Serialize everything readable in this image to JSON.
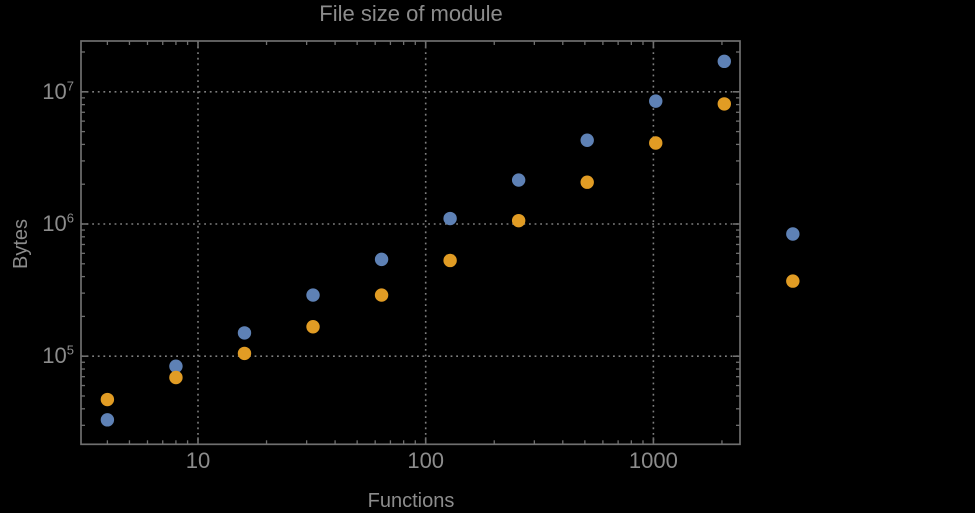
{
  "theme": {
    "background": "#000000",
    "text": "#8c8c8c",
    "frame": "#6f6f6f",
    "gridline": "#7e7e7e"
  },
  "chart_data": {
    "type": "scatter",
    "title": "File size of module",
    "xlabel": "Functions",
    "ylabel": "Bytes",
    "x_axis": {
      "scale": "log",
      "range": [
        3.1,
        2400
      ],
      "major_ticks": [
        10,
        100,
        1000
      ],
      "tick_labels": [
        "10",
        "100",
        "1000"
      ]
    },
    "y_axis": {
      "scale": "log",
      "range": [
        21500,
        24200000
      ],
      "major_ticks": [
        100000,
        1000000,
        10000000
      ],
      "tick_labels": [
        {
          "base": "10",
          "exponent": "5"
        },
        {
          "base": "10",
          "exponent": "6"
        },
        {
          "base": "10",
          "exponent": "7"
        }
      ]
    },
    "grid": {
      "style": "dotted",
      "at": "decade-majors"
    },
    "legend": "none",
    "clip_points_to_frame": false,
    "x": [
      4,
      8,
      16,
      32,
      64,
      128,
      256,
      512,
      1024,
      2048,
      4096
    ],
    "series": [
      {
        "name": "blue",
        "color": "#5e81b5",
        "values": [
          33000,
          84000,
          150000,
          290000,
          540000,
          1100000,
          2150000,
          4300000,
          8500000,
          17000000,
          840000
        ]
      },
      {
        "name": "orange",
        "color": "#e19c24",
        "values": [
          47000,
          69000,
          105000,
          167000,
          290000,
          530000,
          1060000,
          2070000,
          4100000,
          8100000,
          370000
        ]
      }
    ]
  }
}
